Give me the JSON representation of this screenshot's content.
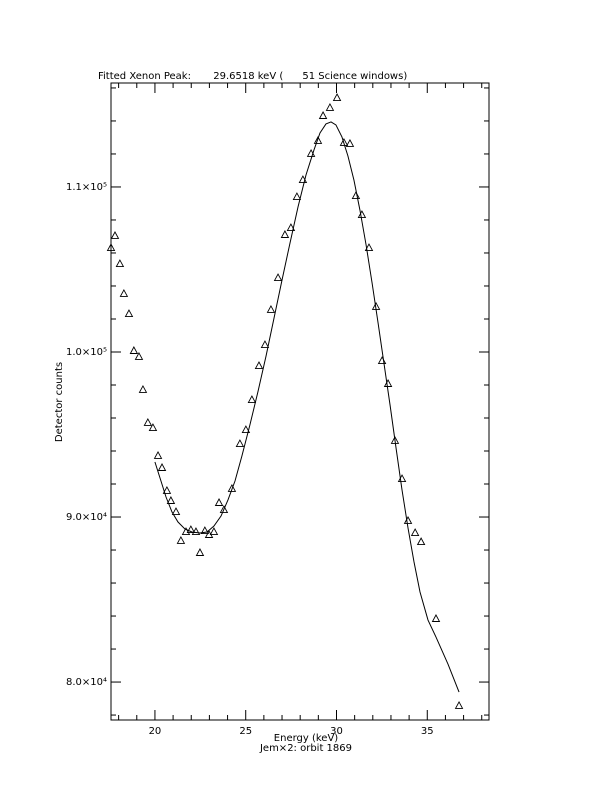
{
  "chart_data": {
    "type": "scatter",
    "title": "Fitted Xenon Peak:       29.6518 keV (      51 Science windows)",
    "x_label": "Energy (keV)",
    "subtitle": "Jem×2: orbit 1869",
    "y_label": "Detector counts",
    "xlim": [
      17.58,
      38.4
    ],
    "ylim": [
      77700,
      116300
    ],
    "xticks": [
      20,
      25,
      30,
      35
    ],
    "xminorticks": [
      18,
      19,
      21,
      22,
      23,
      24,
      26,
      27,
      28,
      29,
      31,
      32,
      33,
      34,
      36,
      37,
      38
    ],
    "yticks": [
      {
        "value": 80000,
        "label": "8.0×10⁴"
      },
      {
        "value": 90000,
        "label": "9.0×10⁴"
      },
      {
        "value": 100000,
        "label": "1.0×10⁵"
      },
      {
        "value": 110000,
        "label": "1.1×10⁵"
      }
    ],
    "yminorticks": [
      78000,
      82000,
      84000,
      86000,
      88000,
      92000,
      94000,
      96000,
      98000,
      102000,
      104000,
      106000,
      108000,
      112000,
      114000,
      116000
    ],
    "color": "#000000",
    "series": [
      {
        "type": "scatter",
        "x": [
          17.58,
          17.8,
          18.07,
          18.29,
          18.57,
          18.84,
          19.12,
          19.34,
          19.61,
          19.89,
          20.17,
          20.39,
          20.66,
          20.88,
          21.16,
          21.43,
          21.71,
          21.98,
          22.26,
          22.48,
          22.75,
          22.98,
          23.25,
          23.53,
          23.8,
          24.24,
          24.68,
          25.01,
          25.34,
          25.73,
          26.06,
          26.39,
          26.78,
          27.16,
          27.49,
          27.82,
          28.15,
          28.6,
          28.98,
          29.26,
          29.64,
          30.03,
          30.41,
          30.74,
          31.07,
          31.4,
          31.79,
          32.18,
          32.51,
          32.84,
          33.22,
          33.61,
          33.94,
          34.33,
          34.66,
          35.48,
          36.75
        ],
        "values": [
          106300,
          107030,
          105330,
          103520,
          102300,
          100060,
          99700,
          97700,
          95700,
          95390,
          93700,
          92970,
          91580,
          90970,
          90300,
          88550,
          89090,
          89210,
          89090,
          87820,
          89150,
          88910,
          89090,
          90850,
          90420,
          91700,
          94420,
          95270,
          97090,
          99150,
          100420,
          102550,
          104480,
          107090,
          107510,
          109390,
          110420,
          112000,
          112790,
          114300,
          114790,
          115390,
          112670,
          112610,
          109450,
          108300,
          106300,
          102730,
          99450,
          98060,
          94610,
          92300,
          89760,
          89030,
          88480,
          83820,
          78550
        ]
      },
      {
        "type": "line",
        "x": [
          20,
          20.28,
          20.61,
          20.94,
          21.27,
          21.65,
          22.04,
          22.48,
          22.87,
          23.25,
          23.64,
          24.02,
          24.41,
          24.79,
          25.23,
          25.67,
          26.12,
          26.56,
          27.0,
          27.44,
          27.88,
          28.32,
          28.76,
          29.09,
          29.42,
          29.7,
          29.97,
          30.3,
          30.63,
          30.96,
          31.29,
          31.63,
          31.96,
          32.29,
          32.62,
          32.95,
          33.28,
          33.61,
          33.94,
          34.27,
          34.6,
          35.04,
          35.48,
          36.14,
          36.75
        ],
        "values": [
          93333,
          92364,
          91212,
          90303,
          89697,
          89273,
          89091,
          89030,
          89091,
          89455,
          90061,
          91030,
          92182,
          93697,
          95576,
          97576,
          99758,
          102061,
          104364,
          106606,
          108788,
          110727,
          112242,
          113273,
          113818,
          113939,
          113758,
          113030,
          111879,
          110424,
          108606,
          106485,
          104182,
          101758,
          99273,
          96788,
          94182,
          91636,
          89333,
          87273,
          85455,
          83758,
          82727,
          81091,
          79394
        ]
      }
    ]
  }
}
